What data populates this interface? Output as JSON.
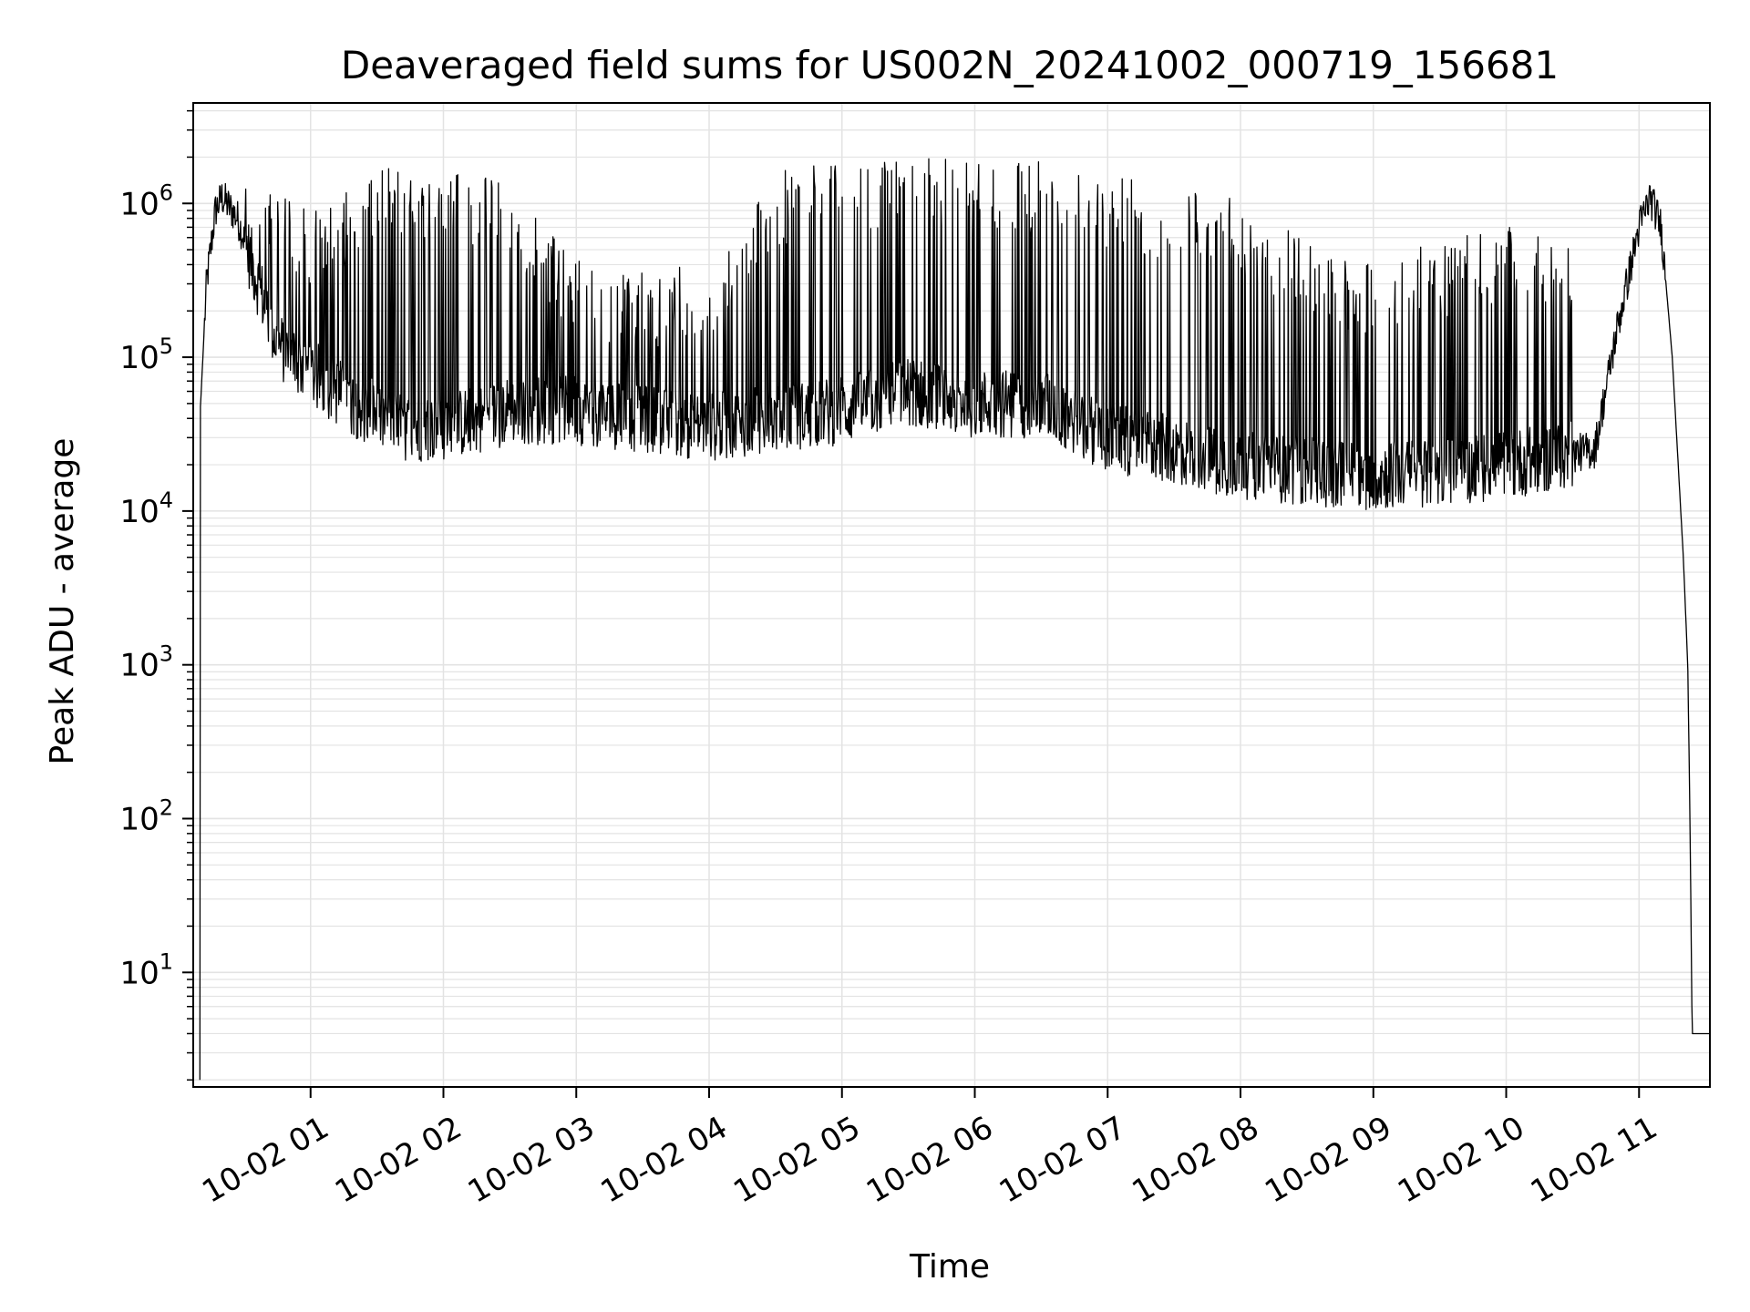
{
  "chart_data": {
    "type": "line",
    "title": "Deaveraged field sums for US002N_20241002_000719_156681",
    "xlabel": "Time",
    "ylabel": "Peak ADU - average",
    "yscale": "log",
    "grid": true,
    "colors": {
      "line": "#000000",
      "grid": "#e3e3e3",
      "background": "#ffffff"
    },
    "x_tick_labels": [
      "10-02 01",
      "10-02 02",
      "10-02 03",
      "10-02 04",
      "10-02 05",
      "10-02 06",
      "10-02 07",
      "10-02 08",
      "10-02 09",
      "10-02 10",
      "10-02 11"
    ],
    "x_tick_values": [
      "2024-10-02 01:00",
      "2024-10-02 02:00",
      "2024-10-02 03:00",
      "2024-10-02 04:00",
      "2024-10-02 05:00",
      "2024-10-02 06:00",
      "2024-10-02 07:00",
      "2024-10-02 08:00",
      "2024-10-02 09:00",
      "2024-10-02 10:00",
      "2024-10-02 11:00"
    ],
    "y_tick_labels": [
      {
        "base": "10",
        "exp": "1"
      },
      {
        "base": "10",
        "exp": "2"
      },
      {
        "base": "10",
        "exp": "3"
      },
      {
        "base": "10",
        "exp": "4"
      },
      {
        "base": "10",
        "exp": "5"
      },
      {
        "base": "10",
        "exp": "6"
      }
    ],
    "y_tick_values": [
      10,
      100,
      1000,
      10000,
      100000,
      1000000
    ],
    "xlim": [
      "2024-10-02 00:07",
      "2024-10-02 11:32"
    ],
    "ylim": [
      1.8,
      4500000
    ],
    "series": [
      {
        "values_description_free": true,
        "baseline": [
          {
            "x": "2024-10-02 00:10",
            "y": 2
          },
          {
            "x": "2024-10-02 00:10",
            "y": 40000
          },
          {
            "x": "2024-10-02 00:13",
            "y": 300000
          },
          {
            "x": "2024-10-02 00:17",
            "y": 900000
          },
          {
            "x": "2024-10-02 00:20",
            "y": 1100000
          },
          {
            "x": "2024-10-02 00:27",
            "y": 800000
          },
          {
            "x": "2024-10-02 00:35",
            "y": 350000
          },
          {
            "x": "2024-10-02 00:45",
            "y": 120000
          },
          {
            "x": "2024-10-02 01:00",
            "y": 80000
          },
          {
            "x": "2024-10-02 01:20",
            "y": 50000
          },
          {
            "x": "2024-10-02 01:40",
            "y": 35000
          },
          {
            "x": "2024-10-02 02:00",
            "y": 35000
          },
          {
            "x": "2024-10-02 02:30",
            "y": 45000
          },
          {
            "x": "2024-10-02 03:00",
            "y": 45000
          },
          {
            "x": "2024-10-02 03:30",
            "y": 40000
          },
          {
            "x": "2024-10-02 04:00",
            "y": 35000
          },
          {
            "x": "2024-10-02 04:30",
            "y": 40000
          },
          {
            "x": "2024-10-02 05:00",
            "y": 45000
          },
          {
            "x": "2024-10-02 05:30",
            "y": 60000
          },
          {
            "x": "2024-10-02 06:00",
            "y": 50000
          },
          {
            "x": "2024-10-02 06:30",
            "y": 50000
          },
          {
            "x": "2024-10-02 07:00",
            "y": 30000
          },
          {
            "x": "2024-10-02 07:30",
            "y": 25000
          },
          {
            "x": "2024-10-02 08:00",
            "y": 20000
          },
          {
            "x": "2024-10-02 08:30",
            "y": 18000
          },
          {
            "x": "2024-10-02 09:00",
            "y": 17000
          },
          {
            "x": "2024-10-02 09:30",
            "y": 18000
          },
          {
            "x": "2024-10-02 10:00",
            "y": 20000
          },
          {
            "x": "2024-10-02 10:40",
            "y": 25000
          },
          {
            "x": "2024-10-02 10:50",
            "y": 150000
          },
          {
            "x": "2024-10-02 11:00",
            "y": 700000
          },
          {
            "x": "2024-10-02 11:05",
            "y": 1100000
          },
          {
            "x": "2024-10-02 11:10",
            "y": 700000
          },
          {
            "x": "2024-10-02 11:15",
            "y": 100000
          },
          {
            "x": "2024-10-02 11:20",
            "y": 5000
          },
          {
            "x": "2024-10-02 11:22",
            "y": 1000
          },
          {
            "x": "2024-10-02 11:23",
            "y": 100
          },
          {
            "x": "2024-10-02 11:24",
            "y": 4
          },
          {
            "x": "2024-10-02 11:32",
            "y": 4
          }
        ],
        "spike_envelope": [
          {
            "x": "2024-10-02 00:30",
            "y": 1500000
          },
          {
            "x": "2024-10-02 01:00",
            "y": 600000
          },
          {
            "x": "2024-10-02 01:30",
            "y": 1200000
          },
          {
            "x": "2024-10-02 02:00",
            "y": 1300000
          },
          {
            "x": "2024-10-02 02:30",
            "y": 1000000
          },
          {
            "x": "2024-10-02 03:00",
            "y": 300000
          },
          {
            "x": "2024-10-02 03:30",
            "y": 250000
          },
          {
            "x": "2024-10-02 04:00",
            "y": 300000
          },
          {
            "x": "2024-10-02 04:30",
            "y": 1200000
          },
          {
            "x": "2024-10-02 05:00",
            "y": 1300000
          },
          {
            "x": "2024-10-02 05:30",
            "y": 1500000
          },
          {
            "x": "2024-10-02 06:00",
            "y": 1300000
          },
          {
            "x": "2024-10-02 06:30",
            "y": 1400000
          },
          {
            "x": "2024-10-02 07:00",
            "y": 1100000
          },
          {
            "x": "2024-10-02 07:30",
            "y": 900000
          },
          {
            "x": "2024-10-02 08:00",
            "y": 800000
          },
          {
            "x": "2024-10-02 08:30",
            "y": 400000
          },
          {
            "x": "2024-10-02 09:00",
            "y": 300000
          },
          {
            "x": "2024-10-02 09:30",
            "y": 400000
          },
          {
            "x": "2024-10-02 10:00",
            "y": 500000
          },
          {
            "x": "2024-10-02 10:30",
            "y": 400000
          }
        ]
      }
    ]
  }
}
